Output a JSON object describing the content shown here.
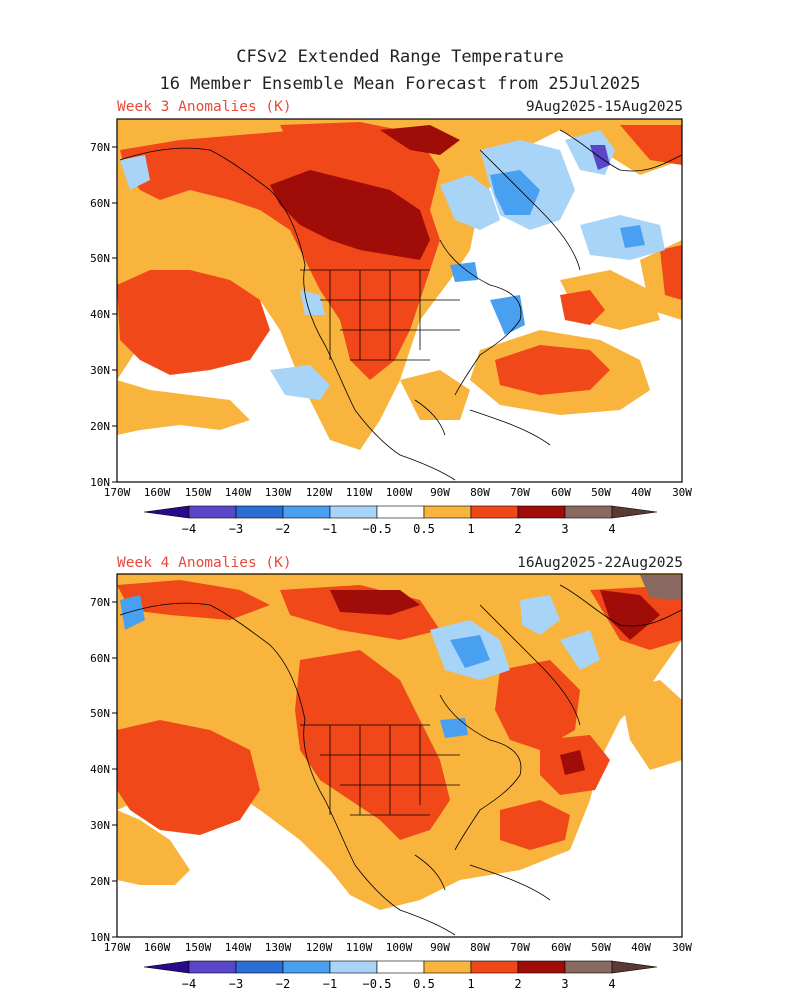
{
  "header": {
    "title_line1": "CFSv2 Extended Range Temperature",
    "title_line2": "16 Member Ensemble Mean Forecast from 25Jul2025"
  },
  "axes": {
    "lat_labels": [
      "70N",
      "60N",
      "50N",
      "40N",
      "30N",
      "20N",
      "10N"
    ],
    "lon_labels": [
      "170W",
      "160W",
      "150W",
      "140W",
      "130W",
      "120W",
      "110W",
      "100W",
      "90W",
      "80W",
      "70W",
      "60W",
      "50W",
      "40W",
      "30W"
    ]
  },
  "panels": [
    {
      "label": "Week 3 Anomalies (K)",
      "dates": "9Aug2025-15Aug2025"
    },
    {
      "label": "Week 4 Anomalies (K)",
      "dates": "16Aug2025-22Aug2025"
    }
  ],
  "colorbar": {
    "labels": [
      "−4",
      "−3",
      "−2",
      "−1",
      "−0.5",
      "0.5",
      "1",
      "2",
      "3",
      "4"
    ],
    "colors": [
      "#2a0a8c",
      "#5a46c8",
      "#2c6fd4",
      "#4aa0f0",
      "#a8d4f8",
      "#ffffff",
      "#f8b43c",
      "#f04818",
      "#a00c08",
      "#8a6a60",
      "#5a3a32"
    ]
  }
}
